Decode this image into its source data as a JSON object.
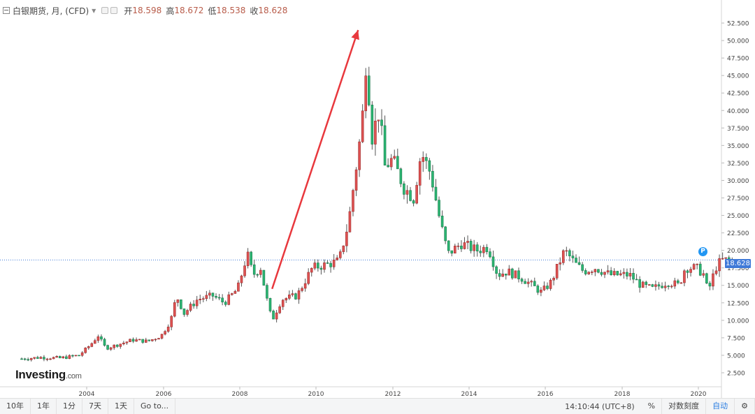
{
  "header": {
    "title": "白银期货, 月, (CFD)",
    "open_label": "开",
    "open_value": "18.598",
    "high_label": "高",
    "high_value": "18.672",
    "low_label": "低",
    "low_value": "18.538",
    "close_label": "收",
    "close_value": "18.628"
  },
  "current_price": "18.628",
  "marker_label": "P",
  "logo": {
    "text": "Investing",
    "suffix": ".com"
  },
  "bottom_bar": {
    "buttons": [
      "10年",
      "1年",
      "1分",
      "7天",
      "1天",
      "Go to..."
    ],
    "time": "14:10:44 (UTC+8)",
    "percent": "%",
    "log_scale": "对数刻度",
    "auto": "自动",
    "settings_icon": "gear-icon"
  },
  "colors": {
    "up": "#e05252",
    "down": "#2bb673",
    "accent": "#3f7ad8",
    "arrow": "#e8383d",
    "price_line": "#3f7ad8"
  },
  "chart_data": {
    "type": "candlestick",
    "title": "白银期货, 月, (CFD)",
    "interval": "monthly",
    "x_ticks": [
      "2004",
      "2006",
      "2008",
      "2010",
      "2012",
      "2014",
      "2016",
      "2018",
      "2020"
    ],
    "y_ticks": [
      "2.500",
      "5.000",
      "7.500",
      "10.000",
      "12.500",
      "15.000",
      "17.500",
      "20.000",
      "22.500",
      "25.000",
      "27.500",
      "30.000",
      "32.500",
      "35.000",
      "37.500",
      "40.000",
      "42.500",
      "45.000",
      "47.500",
      "50.000",
      "52.500"
    ],
    "ylim": [
      0.5,
      54
    ],
    "xlim": [
      2002.3,
      2020.9
    ],
    "grid": false,
    "current_price_line": 18.628,
    "anchors": [
      [
        2002.3,
        4.5
      ],
      [
        2002.8,
        4.7
      ],
      [
        2003.3,
        4.6
      ],
      [
        2003.8,
        5.0
      ],
      [
        2004.1,
        6.5
      ],
      [
        2004.3,
        7.8
      ],
      [
        2004.5,
        6.0
      ],
      [
        2004.8,
        6.5
      ],
      [
        2005.2,
        7.2
      ],
      [
        2005.6,
        7.0
      ],
      [
        2005.95,
        7.8
      ],
      [
        2006.2,
        10.0
      ],
      [
        2006.35,
        13.5
      ],
      [
        2006.55,
        11.0
      ],
      [
        2006.9,
        13.0
      ],
      [
        2007.3,
        13.5
      ],
      [
        2007.6,
        12.5
      ],
      [
        2007.95,
        14.5
      ],
      [
        2008.2,
        19.5
      ],
      [
        2008.35,
        16.5
      ],
      [
        2008.55,
        17.5
      ],
      [
        2008.75,
        12.0
      ],
      [
        2008.85,
        10.0
      ],
      [
        2009.1,
        13.0
      ],
      [
        2009.5,
        13.5
      ],
      [
        2009.9,
        17.5
      ],
      [
        2010.3,
        18.0
      ],
      [
        2010.6,
        18.5
      ],
      [
        2010.85,
        24.0
      ],
      [
        2011.0,
        30.0
      ],
      [
        2011.2,
        38.0
      ],
      [
        2011.32,
        48.5
      ],
      [
        2011.45,
        36.0
      ],
      [
        2011.65,
        40.0
      ],
      [
        2011.8,
        32.0
      ],
      [
        2012.0,
        33.0
      ],
      [
        2012.3,
        29.0
      ],
      [
        2012.55,
        27.5
      ],
      [
        2012.75,
        34.0
      ],
      [
        2013.0,
        31.0
      ],
      [
        2013.25,
        24.0
      ],
      [
        2013.45,
        19.5
      ],
      [
        2013.8,
        21.0
      ],
      [
        2014.2,
        20.0
      ],
      [
        2014.5,
        20.5
      ],
      [
        2014.75,
        16.5
      ],
      [
        2015.0,
        17.0
      ],
      [
        2015.4,
        16.0
      ],
      [
        2015.9,
        14.0
      ],
      [
        2016.15,
        15.5
      ],
      [
        2016.5,
        20.0
      ],
      [
        2016.8,
        18.0
      ],
      [
        2017.0,
        17.0
      ],
      [
        2017.3,
        17.5
      ],
      [
        2017.7,
        16.5
      ],
      [
        2018.2,
        16.5
      ],
      [
        2018.5,
        15.0
      ],
      [
        2018.8,
        14.5
      ],
      [
        2019.2,
        15.5
      ],
      [
        2019.5,
        15.0
      ],
      [
        2019.65,
        17.5
      ],
      [
        2019.95,
        17.5
      ],
      [
        2020.15,
        16.5
      ],
      [
        2020.25,
        14.0
      ],
      [
        2020.45,
        17.5
      ],
      [
        2020.6,
        18.6
      ]
    ],
    "annotation": {
      "type": "arrow",
      "from": [
        2008.85,
        14.5
      ],
      "to": [
        2011.1,
        51.5
      ]
    }
  }
}
